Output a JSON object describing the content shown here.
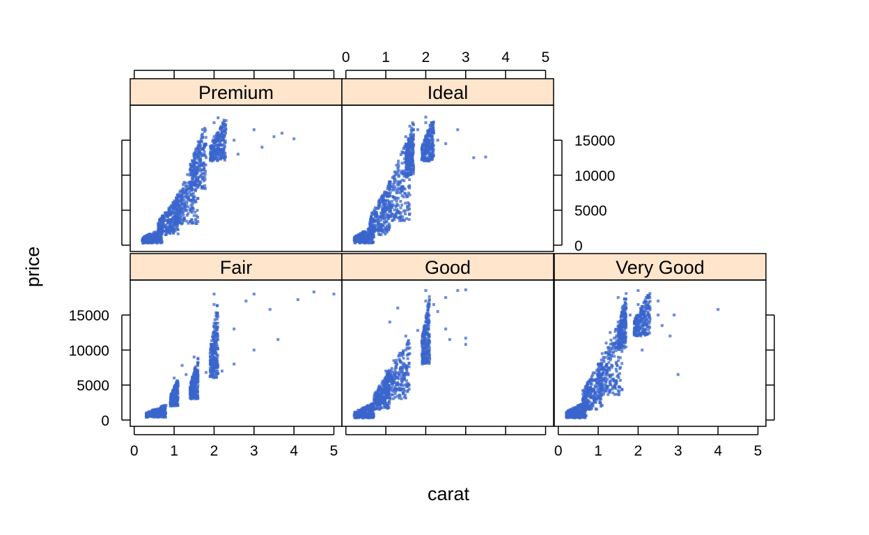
{
  "chart_data": {
    "type": "scatter",
    "xlabel": "carat",
    "ylabel": "price",
    "x_ticks": [
      0,
      1,
      2,
      3,
      4,
      5
    ],
    "y_ticks": [
      0,
      5000,
      10000,
      15000
    ],
    "xlim": [
      -0.1,
      5.2
    ],
    "ylim": [
      -900,
      20000
    ],
    "point_color": "#3a66cc",
    "strip_color": "#ffe5cc",
    "panels": [
      {
        "name": "Premium",
        "points": [
          [
            0.3,
            500
          ],
          [
            0.4,
            800
          ],
          [
            0.5,
            1200
          ],
          [
            0.6,
            1600
          ],
          [
            0.7,
            2200
          ],
          [
            0.8,
            2900
          ],
          [
            0.9,
            3600
          ],
          [
            1.0,
            4600
          ],
          [
            1.0,
            5600
          ],
          [
            1.1,
            5900
          ],
          [
            1.2,
            7200
          ],
          [
            1.3,
            8000
          ],
          [
            1.5,
            9800
          ],
          [
            1.5,
            11500
          ],
          [
            1.6,
            13000
          ],
          [
            1.7,
            12800
          ],
          [
            1.8,
            12500
          ],
          [
            2.0,
            15500
          ],
          [
            2.0,
            17500
          ],
          [
            2.1,
            18200
          ],
          [
            2.2,
            16000
          ],
          [
            2.3,
            17800
          ],
          [
            2.5,
            15000
          ],
          [
            2.6,
            13000
          ],
          [
            3.0,
            16500
          ],
          [
            3.2,
            14000
          ],
          [
            3.5,
            15500
          ],
          [
            4.0,
            15200
          ],
          [
            3.7,
            16000
          ]
        ],
        "dense": [
          [
            0.2,
            0.7,
            300,
            2500
          ],
          [
            0.6,
            1.1,
            1500,
            7000
          ],
          [
            1.0,
            1.6,
            3000,
            13000
          ],
          [
            1.4,
            1.8,
            8000,
            18000
          ],
          [
            1.9,
            2.3,
            12000,
            18500
          ]
        ]
      },
      {
        "name": "Ideal",
        "points": [
          [
            0.3,
            500
          ],
          [
            0.4,
            700
          ],
          [
            0.5,
            1100
          ],
          [
            0.6,
            1500
          ],
          [
            0.7,
            2600
          ],
          [
            0.8,
            3200
          ],
          [
            0.9,
            4000
          ],
          [
            1.0,
            5200
          ],
          [
            1.0,
            7500
          ],
          [
            1.1,
            8500
          ],
          [
            1.2,
            9800
          ],
          [
            1.3,
            11000
          ],
          [
            1.5,
            13000
          ],
          [
            1.5,
            15500
          ],
          [
            1.6,
            17000
          ],
          [
            1.8,
            16500
          ],
          [
            2.0,
            17500
          ],
          [
            2.0,
            18300
          ],
          [
            2.2,
            16000
          ],
          [
            2.3,
            15000
          ],
          [
            2.5,
            14500
          ],
          [
            2.8,
            16500
          ],
          [
            3.2,
            12500
          ],
          [
            3.5,
            12600
          ]
        ],
        "dense": [
          [
            0.2,
            0.7,
            300,
            2800
          ],
          [
            0.6,
            1.1,
            1500,
            9000
          ],
          [
            1.0,
            1.6,
            3500,
            16000
          ],
          [
            1.5,
            1.7,
            10000,
            18500
          ],
          [
            1.9,
            2.2,
            12000,
            18500
          ]
        ]
      },
      {
        "name": "Fair",
        "points": [
          [
            0.3,
            400
          ],
          [
            0.5,
            900
          ],
          [
            0.7,
            1500
          ],
          [
            0.9,
            2500
          ],
          [
            1.0,
            3900
          ],
          [
            1.0,
            6000
          ],
          [
            1.1,
            5000
          ],
          [
            1.2,
            7800
          ],
          [
            1.3,
            6500
          ],
          [
            1.5,
            6000
          ],
          [
            1.5,
            9000
          ],
          [
            1.6,
            8200
          ],
          [
            1.8,
            6800
          ],
          [
            2.0,
            10000
          ],
          [
            2.0,
            12500
          ],
          [
            2.0,
            16500
          ],
          [
            2.0,
            18000
          ],
          [
            2.2,
            7000
          ],
          [
            2.5,
            13000
          ],
          [
            2.5,
            8000
          ],
          [
            3.0,
            10000
          ],
          [
            3.0,
            18000
          ],
          [
            3.4,
            15800
          ],
          [
            3.6,
            11500
          ],
          [
            4.1,
            17200
          ],
          [
            4.5,
            18300
          ],
          [
            5.0,
            18000
          ],
          [
            2.8,
            17000
          ]
        ],
        "dense": [
          [
            0.3,
            0.8,
            400,
            2200
          ],
          [
            0.9,
            1.1,
            2000,
            6000
          ],
          [
            1.4,
            1.6,
            3000,
            9000
          ],
          [
            1.9,
            2.1,
            6000,
            17500
          ]
        ]
      },
      {
        "name": "Good",
        "points": [
          [
            0.3,
            400
          ],
          [
            0.5,
            900
          ],
          [
            0.7,
            1600
          ],
          [
            0.9,
            2800
          ],
          [
            1.0,
            4200
          ],
          [
            1.0,
            7000
          ],
          [
            1.1,
            6000
          ],
          [
            1.2,
            8500
          ],
          [
            1.4,
            9200
          ],
          [
            1.5,
            10000
          ],
          [
            1.5,
            12000
          ],
          [
            1.6,
            9500
          ],
          [
            1.8,
            12800
          ],
          [
            2.0,
            14000
          ],
          [
            2.0,
            17000
          ],
          [
            2.0,
            18500
          ],
          [
            2.2,
            16500
          ],
          [
            2.3,
            15500
          ],
          [
            2.5,
            17500
          ],
          [
            2.5,
            13000
          ],
          [
            2.6,
            11500
          ],
          [
            2.8,
            18500
          ],
          [
            3.0,
            11700
          ],
          [
            3.0,
            10800
          ],
          [
            3.0,
            18600
          ],
          [
            1.3,
            16000
          ],
          [
            1.1,
            14000
          ]
        ],
        "dense": [
          [
            0.2,
            0.7,
            300,
            2500
          ],
          [
            0.7,
            1.1,
            1500,
            7500
          ],
          [
            1.0,
            1.6,
            3000,
            12000
          ],
          [
            1.9,
            2.1,
            8000,
            18000
          ]
        ]
      },
      {
        "name": "Very Good",
        "points": [
          [
            0.3,
            500
          ],
          [
            0.5,
            1000
          ],
          [
            0.7,
            1800
          ],
          [
            0.9,
            3000
          ],
          [
            1.0,
            4500
          ],
          [
            1.0,
            8000
          ],
          [
            1.1,
            9500
          ],
          [
            1.2,
            11000
          ],
          [
            1.3,
            12500
          ],
          [
            1.5,
            14000
          ],
          [
            1.5,
            17500
          ],
          [
            1.6,
            16000
          ],
          [
            1.8,
            15000
          ],
          [
            2.0,
            16500
          ],
          [
            2.0,
            18500
          ],
          [
            2.2,
            17500
          ],
          [
            2.3,
            16000
          ],
          [
            2.5,
            17000
          ],
          [
            2.5,
            15000
          ],
          [
            2.6,
            13500
          ],
          [
            2.9,
            15000
          ],
          [
            3.0,
            6500
          ],
          [
            4.0,
            15800
          ],
          [
            2.8,
            12000
          ],
          [
            2.1,
            10000
          ]
        ],
        "dense": [
          [
            0.2,
            0.7,
            300,
            2800
          ],
          [
            0.6,
            1.1,
            1500,
            9000
          ],
          [
            1.0,
            1.6,
            3500,
            15000
          ],
          [
            1.5,
            1.7,
            10000,
            18500
          ],
          [
            1.9,
            2.3,
            12000,
            18500
          ]
        ]
      }
    ]
  }
}
